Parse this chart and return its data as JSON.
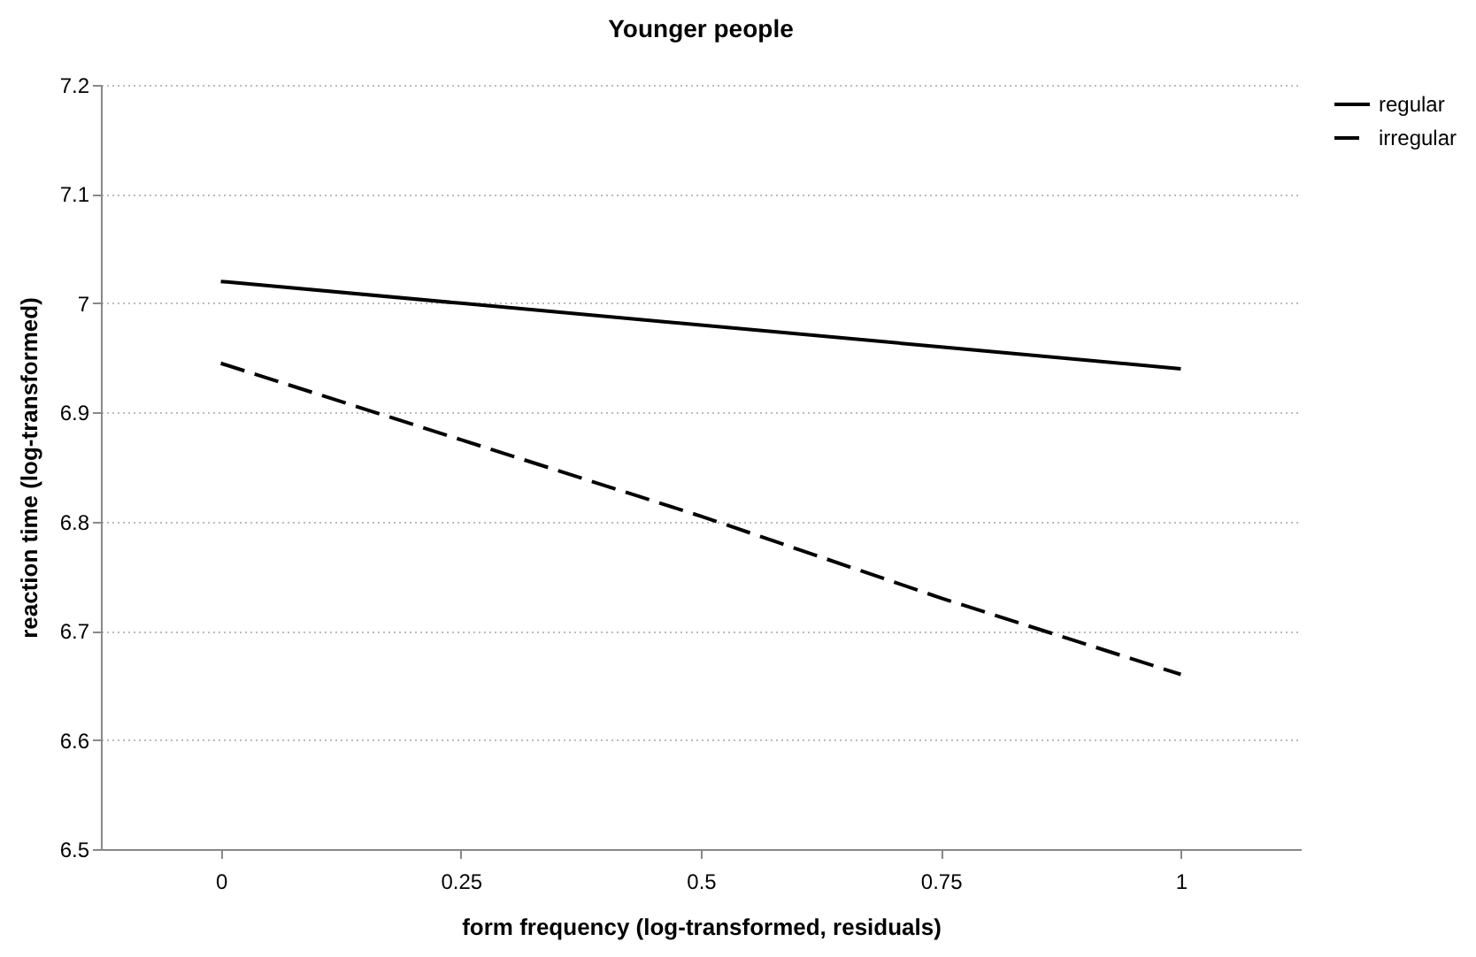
{
  "chart_data": {
    "type": "line",
    "title": "Younger people",
    "xlabel": "form frequency (log-transformed, residuals)",
    "ylabel": "reaction time (log-transformed)",
    "categories": [
      "0",
      "0.25",
      "0.5",
      "0.75",
      "1"
    ],
    "series": [
      {
        "name": "regular",
        "color": "#000000",
        "line_style": "solid",
        "values": [
          7.02,
          7.0,
          6.98,
          6.96,
          6.94
        ]
      },
      {
        "name": "irregular",
        "color": "#000000",
        "line_style": "dashed",
        "values": [
          6.945,
          6.875,
          6.805,
          6.73,
          6.66
        ]
      }
    ],
    "ylim": [
      6.5,
      7.2
    ],
    "yticks": [
      6.5,
      6.6,
      6.7,
      6.8,
      6.9,
      7,
      7.1,
      7.2
    ],
    "grid": "y",
    "legend": "right",
    "marker": "none"
  }
}
